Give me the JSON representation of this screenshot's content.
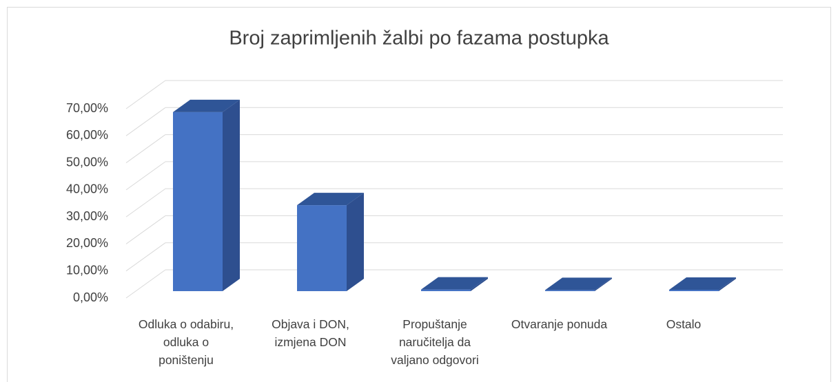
{
  "chart_data": {
    "type": "bar3d",
    "title": "Broj zaprimljenih žalbi po fazama postupka",
    "categories": [
      "Odluka o odabiru, odluka o poništenju",
      "Objava i DON, izmjena DON",
      "Propuštanje naručitelja da valjano odgovori",
      "Otvaranje ponuda",
      "Ostalo"
    ],
    "values": [
      66.2,
      31.8,
      0.6,
      0.4,
      0.5
    ],
    "color": "#4472c4",
    "ylim": [
      0,
      70
    ],
    "yticks": [
      {
        "value": 0,
        "label": "0,00%"
      },
      {
        "value": 10,
        "label": "10,00%"
      },
      {
        "value": 20,
        "label": "20,00%"
      },
      {
        "value": 30,
        "label": "30,00%"
      },
      {
        "value": 40,
        "label": "40,00%"
      },
      {
        "value": 50,
        "label": "50,00%"
      },
      {
        "value": 60,
        "label": "60,00%"
      },
      {
        "value": 70,
        "label": "70,00%"
      }
    ],
    "grid": true
  }
}
